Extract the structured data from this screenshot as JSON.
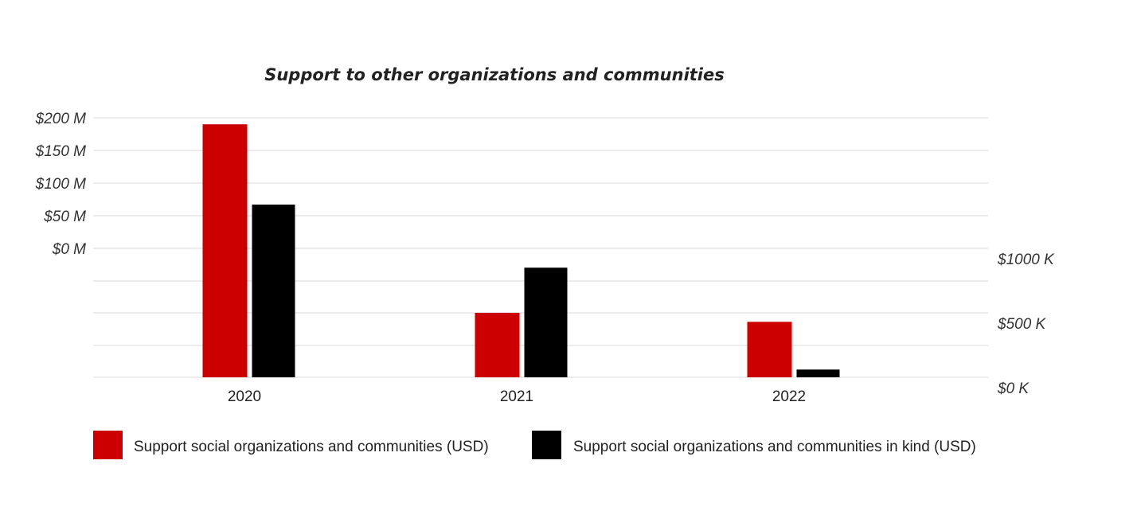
{
  "chart_data": {
    "type": "bar",
    "title": "Support to other organizations and communities",
    "categories": [
      "2020",
      "2021",
      "2022"
    ],
    "series": [
      {
        "name": "Support social organizations and communities (USD)",
        "color": "#cc0000",
        "axis": "left",
        "unit": "USD",
        "values": [
          190000000,
          0,
          0
        ]
      },
      {
        "name": "Support social organizations and communities in kind (USD)",
        "color": "#000000",
        "axis": "left",
        "unit": "USD",
        "values": [
          67000000,
          0,
          0
        ]
      }
    ],
    "secondary_axis_values": {
      "2021": {
        "red": 500000,
        "black": 850000
      },
      "2022": {
        "red": 430000,
        "black": 60000
      }
    },
    "y_left": {
      "ticks": [
        "$200 M",
        "$150 M",
        "$100 M",
        "$50 M",
        "$0 M"
      ],
      "range_musd": [
        0,
        200
      ]
    },
    "y_right": {
      "ticks": [
        "$1000 K",
        "$500 K",
        "$0 K"
      ],
      "range_kusd": [
        0,
        1000
      ]
    },
    "grid": true,
    "legend_position": "bottom-left"
  }
}
